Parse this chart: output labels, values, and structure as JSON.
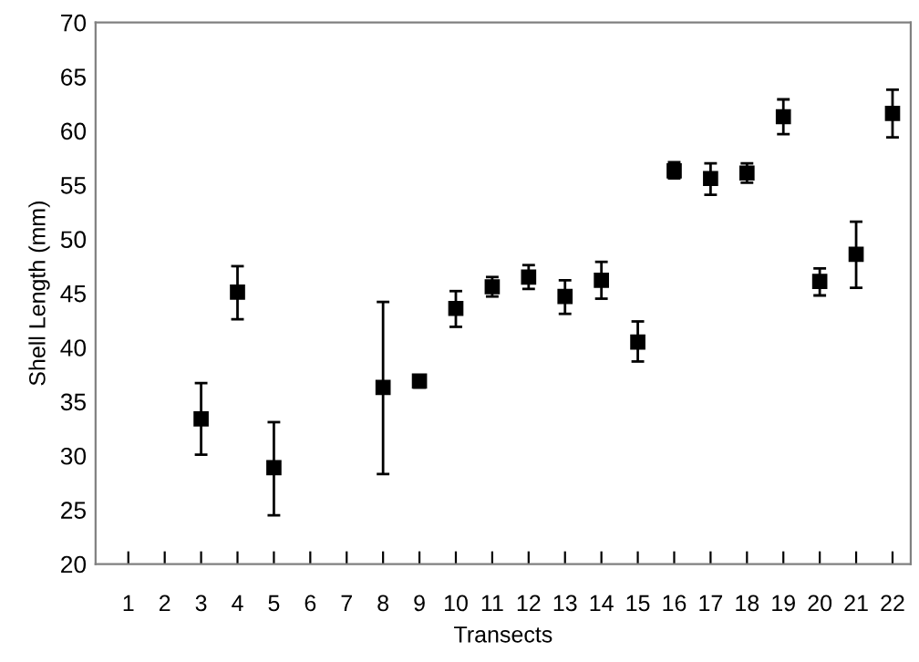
{
  "chart_data": {
    "type": "scatter",
    "xlabel": "Transects",
    "ylabel": "Shell Length (mm)",
    "categories": [
      "1",
      "2",
      "3",
      "4",
      "5",
      "6",
      "7",
      "8",
      "9",
      "10",
      "11",
      "12",
      "13",
      "14",
      "15",
      "16",
      "17",
      "18",
      "19",
      "20",
      "21",
      "22"
    ],
    "values": [
      null,
      null,
      33.4,
      45.1,
      28.9,
      null,
      null,
      36.3,
      36.9,
      43.6,
      45.6,
      46.5,
      44.7,
      46.2,
      40.5,
      56.3,
      55.6,
      56.1,
      61.3,
      46.1,
      48.6,
      61.6
    ],
    "errors": [
      null,
      null,
      [
        30.1,
        36.7
      ],
      [
        42.6,
        47.5
      ],
      [
        24.5,
        33.1
      ],
      null,
      null,
      [
        28.3,
        44.2
      ],
      [
        36.3,
        37.4
      ],
      [
        41.9,
        45.2
      ],
      [
        44.7,
        46.5
      ],
      [
        45.4,
        47.6
      ],
      [
        43.1,
        46.2
      ],
      [
        44.5,
        47.9
      ],
      [
        38.7,
        42.4
      ],
      [
        55.6,
        57.1
      ],
      [
        54.1,
        57.0
      ],
      [
        55.2,
        57.0
      ],
      [
        59.7,
        62.9
      ],
      [
        44.8,
        47.3
      ],
      [
        45.5,
        51.6
      ],
      [
        59.4,
        63.8
      ]
    ],
    "color": "#000000",
    "marker": "square",
    "ylim": [
      20,
      70
    ],
    "yticks": [
      20,
      25,
      30,
      35,
      40,
      45,
      50,
      55,
      60,
      65,
      70
    ],
    "grid": false,
    "legend": false
  }
}
